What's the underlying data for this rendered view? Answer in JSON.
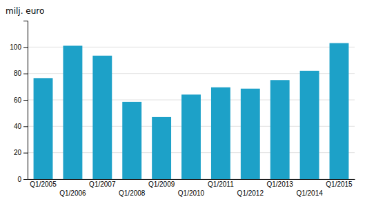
{
  "chart_data": {
    "type": "bar",
    "ylabel": "milj. euro",
    "categories": [
      "Q1/2005",
      "Q1/2006",
      "Q1/2007",
      "Q1/2008",
      "Q1/2009",
      "Q1/2010",
      "Q1/2011",
      "Q1/2012",
      "Q1/2013",
      "Q1/2014",
      "Q1/2015"
    ],
    "values": [
      76.5,
      101.0,
      93.5,
      58.5,
      47.0,
      64.0,
      69.5,
      68.5,
      75.0,
      82.0,
      103.0
    ],
    "color": "#1da1c8",
    "ylim": [
      0,
      120
    ],
    "yticks": [
      0,
      20,
      40,
      60,
      80,
      100
    ],
    "grid": true
  }
}
